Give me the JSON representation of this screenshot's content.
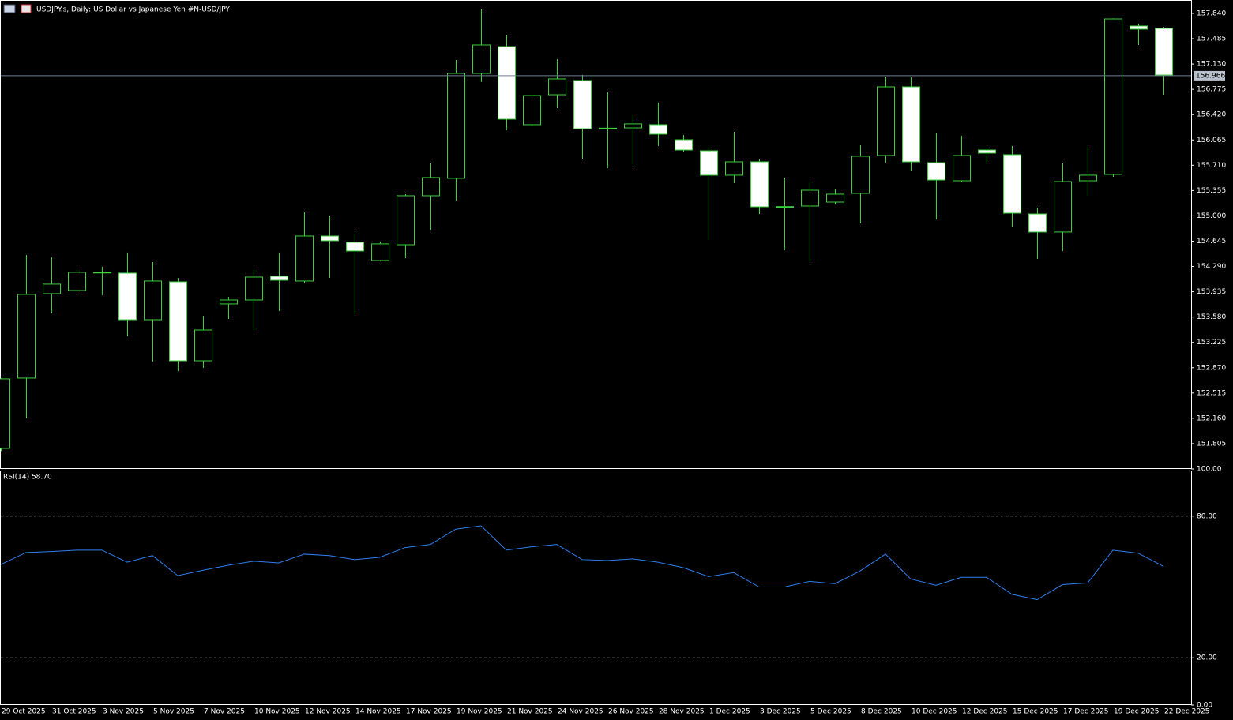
{
  "chart_data": [
    {
      "type": "candlestick",
      "title": "USDJPY.s, Daily:  US Dollar vs  Japanese Yen #N-USD/JPY",
      "categories": [
        "29 Oct 2025",
        null,
        "31 Oct 2025",
        null,
        "3 Nov 2025",
        null,
        "5 Nov 2025",
        null,
        "7 Nov 2025",
        null,
        "10 Nov 2025",
        null,
        "12 Nov 2025",
        null,
        "14 Nov 2025",
        null,
        "17 Nov 2025",
        null,
        "19 Nov 2025",
        null,
        "21 Nov 2025",
        null,
        "24 Nov 2025",
        null,
        "26 Nov 2025",
        null,
        "28 Nov 2025",
        null,
        "1 Dec 2025",
        null,
        "3 Dec 2025",
        null,
        "5 Dec 2025",
        null,
        "8 Dec 2025",
        null,
        "10 Dec 2025",
        null,
        "12 Dec 2025",
        null,
        "15 Dec 2025",
        null,
        "17 Dec 2025",
        null,
        "19 Dec 2025",
        null,
        "22 Dec 2025"
      ],
      "open": [
        151.738,
        152.724,
        153.909,
        153.953,
        154.2,
        154.197,
        153.543,
        154.075,
        152.967,
        153.765,
        153.82,
        154.152,
        154.086,
        154.717,
        154.629,
        154.374,
        154.595,
        155.282,
        155.526,
        156.998,
        157.375,
        156.279,
        156.699,
        156.899,
        156.22,
        156.234,
        156.279,
        156.068,
        155.913,
        155.57,
        155.758,
        155.12,
        155.138,
        155.193,
        155.315,
        155.847,
        156.81,
        155.747,
        155.492,
        155.924,
        155.858,
        155.027,
        154.773,
        155.492,
        155.581,
        157.663,
        157.63
      ],
      "high": [
        152.72,
        154.451,
        154.418,
        154.241,
        154.285,
        154.485,
        154.352,
        154.13,
        153.599,
        153.864,
        154.241,
        154.485,
        155.049,
        155.005,
        154.761,
        154.64,
        155.304,
        155.736,
        157.187,
        157.895,
        157.541,
        156.699,
        157.198,
        156.976,
        156.733,
        156.411,
        156.589,
        156.135,
        155.968,
        156.179,
        155.791,
        155.537,
        155.481,
        155.37,
        155.991,
        156.954,
        156.943,
        156.168,
        156.124,
        155.946,
        155.98,
        155.116,
        155.736,
        155.969,
        157.77,
        157.696,
        157.652
      ],
      "low": [
        151.7,
        152.159,
        153.632,
        153.931,
        153.887,
        153.311,
        152.956,
        152.823,
        152.868,
        153.554,
        153.399,
        153.665,
        154.064,
        154.13,
        153.621,
        154.363,
        154.407,
        154.806,
        155.215,
        156.877,
        156.201,
        156.27,
        156.511,
        155.802,
        155.669,
        155.714,
        155.98,
        155.902,
        154.662,
        155.459,
        155.027,
        154.518,
        154.363,
        155.16,
        154.894,
        155.747,
        155.636,
        154.95,
        155.47,
        155.736,
        154.839,
        154.396,
        154.507,
        155.282,
        155.548,
        157.397,
        156.699
      ],
      "close": [
        152.713,
        153.898,
        154.042,
        154.208,
        154.21,
        153.543,
        154.086,
        152.967,
        153.399,
        153.82,
        154.141,
        154.097,
        154.717,
        154.651,
        154.507,
        154.607,
        155.282,
        155.537,
        156.998,
        157.397,
        156.356,
        156.688,
        156.921,
        156.223,
        156.23,
        156.29,
        156.146,
        155.924,
        155.57,
        155.758,
        155.127,
        155.13,
        155.359,
        155.304,
        155.836,
        156.81,
        155.758,
        155.503,
        155.847,
        155.88,
        155.038,
        154.773,
        155.481,
        155.57,
        157.762,
        157.619,
        156.976
      ],
      "current_price": 156.966,
      "ylim": [
        151.461,
        158.028
      ],
      "yticks": [
        {
          "value": 157.84,
          "label": "157.840"
        },
        157.485,
        {
          "value": 157.13,
          "label": "157.130"
        },
        156.775,
        {
          "value": 156.42,
          "label": "156.420"
        },
        156.065,
        {
          "value": 155.71,
          "label": "155.710"
        },
        155.355,
        {
          "value": 155,
          "label": "155.000"
        },
        154.645,
        {
          "value": 154.29,
          "label": "154.290"
        },
        153.935,
        {
          "value": 153.58,
          "label": "153.580"
        },
        153.225,
        {
          "value": 152.87,
          "label": "152.870"
        },
        152.515,
        {
          "value": 152.16,
          "label": "152.160"
        },
        151.805
      ],
      "up_color": "#3bd13b",
      "down_fill": "#ffffff",
      "up_fill": "#000000"
    },
    {
      "type": "line",
      "title": "RSI(14) 58.70",
      "values": [
        59.5,
        64.6,
        65.0,
        65.6,
        65.6,
        60.5,
        63.3,
        54.8,
        57.1,
        59.2,
        60.9,
        60.2,
        63.9,
        63.3,
        61.6,
        62.6,
        66.7,
        68.0,
        74.5,
        75.9,
        65.6,
        67.0,
        68.0,
        61.6,
        61.2,
        61.9,
        60.5,
        58.2,
        54.4,
        56.1,
        50.0,
        50.0,
        52.4,
        51.4,
        56.8,
        63.9,
        53.4,
        50.7,
        54.1,
        54.1,
        46.9,
        44.6,
        51.0,
        51.7,
        65.6,
        64.3,
        58.7
      ],
      "color": "#2f7fef",
      "ylim": [
        0,
        100
      ],
      "yticks": [
        {
          "value": 100,
          "label": "100.00"
        },
        {
          "value": 80,
          "label": "80.00"
        },
        {
          "value": 20,
          "label": "20.00"
        },
        {
          "value": 0,
          "label": "0.00"
        }
      ]
    }
  ]
}
